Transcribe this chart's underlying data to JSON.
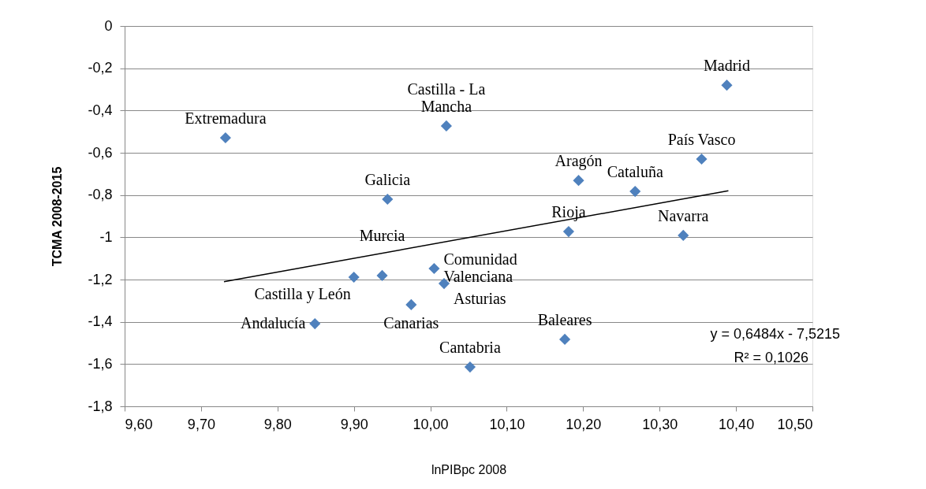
{
  "chart_data": {
    "type": "scatter",
    "xlabel": "lnPIBpc 2008",
    "ylabel": "TCMA 2008-2015",
    "series": [
      {
        "color": "#4f81bd",
        "marker": "diamond",
        "x": [
          10.388,
          10.021,
          9.732,
          10.355,
          10.194,
          10.268,
          9.944,
          10.181,
          10.331,
          10.005,
          9.9,
          9.937,
          10.018,
          9.975,
          9.849,
          10.176,
          10.052
        ],
        "values": [
          -0.28,
          -0.473,
          -0.529,
          -0.63,
          -0.731,
          -0.783,
          -0.82,
          -0.973,
          -0.991,
          -1.148,
          -1.189,
          -1.181,
          -1.219,
          -1.319,
          -1.409,
          -1.483,
          -1.614
        ]
      },
      {
        "type": "line",
        "color": "#000000",
        "marker": "none",
        "x": [
          9.73,
          10.39
        ],
        "values": [
          -1.21,
          -0.78
        ]
      }
    ],
    "annotations": [
      {
        "text": "Madrid",
        "x": 10.388,
        "y": -0.28
      },
      {
        "text": "Castilla - La Mancha",
        "x": 10.021,
        "y": -0.473
      },
      {
        "text": "Extremadura",
        "x": 9.732,
        "y": -0.529
      },
      {
        "text": "País Vasco",
        "x": 10.355,
        "y": -0.63
      },
      {
        "text": "Aragón",
        "x": 10.194,
        "y": -0.731
      },
      {
        "text": "Cataluña",
        "x": 10.268,
        "y": -0.783
      },
      {
        "text": "Galicia",
        "x": 9.944,
        "y": -0.82
      },
      {
        "text": "Rioja",
        "x": 10.181,
        "y": -0.973
      },
      {
        "text": "Navarra",
        "x": 10.331,
        "y": -0.991
      },
      {
        "text": "Comunidad Valenciana",
        "x": 10.005,
        "y": -1.148
      },
      {
        "text": "Castilla y León",
        "x": 9.9,
        "y": -1.189
      },
      {
        "text": "Murcia",
        "x": 9.937,
        "y": -1.181
      },
      {
        "text": "Asturias",
        "x": 10.018,
        "y": -1.219
      },
      {
        "text": "Canarias",
        "x": 9.975,
        "y": -1.319
      },
      {
        "text": "Andalucía",
        "x": 9.849,
        "y": -1.409
      },
      {
        "text": "Baleares",
        "x": 10.176,
        "y": -1.483
      },
      {
        "text": "Cantabria",
        "x": 10.052,
        "y": -1.614
      },
      "y = 0,6484x - 7,5215",
      "R² = 0,1026"
    ],
    "xlim": [
      9.6,
      10.5
    ],
    "xticks": [
      {
        "value": 9.6,
        "label": "9,60"
      },
      {
        "value": 9.7,
        "label": "9,70"
      },
      {
        "value": 9.8,
        "label": "9,80"
      },
      {
        "value": 9.9,
        "label": "9,90"
      },
      {
        "value": 10.0,
        "label": "10,00"
      },
      {
        "value": 10.1,
        "label": "10,10"
      },
      {
        "value": 10.2,
        "label": "10,20"
      },
      {
        "value": 10.3,
        "label": "10,30"
      },
      {
        "value": 10.4,
        "label": "10,40"
      },
      {
        "value": 10.5,
        "label": "10,50"
      }
    ],
    "ylim": [
      -1.8,
      0
    ],
    "yticks": [
      0,
      {
        "value": -0.2,
        "label": "-0,2"
      },
      {
        "value": -0.4,
        "label": "-0,4"
      },
      {
        "value": -0.6,
        "label": "-0,6"
      },
      {
        "value": -0.8,
        "label": "-0,8"
      },
      -1,
      {
        "value": -1.2,
        "label": "-1,2"
      },
      {
        "value": -1.4,
        "label": "-1,4"
      },
      {
        "value": -1.6,
        "label": "-1,6"
      },
      {
        "value": -1.8,
        "label": "-1,8"
      }
    ],
    "grid": "y"
  }
}
